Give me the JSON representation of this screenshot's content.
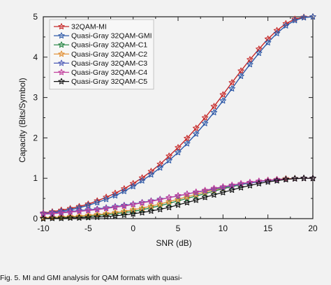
{
  "chart_data": {
    "type": "line",
    "xlabel": "SNR (dB)",
    "ylabel": "Capacity (Bits/Symbol)",
    "xlim": [
      -10,
      20
    ],
    "ylim": [
      0,
      5
    ],
    "x_ticks": [
      -10,
      -5,
      0,
      5,
      10,
      15,
      20
    ],
    "y_ticks": [
      0,
      1,
      2,
      3,
      4,
      5
    ],
    "grid": false,
    "legend_position": "top-left",
    "x": [
      -10,
      -9,
      -8,
      -7,
      -6,
      -5,
      -4,
      -3,
      -2,
      -1,
      0,
      1,
      2,
      3,
      4,
      5,
      6,
      7,
      8,
      9,
      10,
      11,
      12,
      13,
      14,
      15,
      16,
      17,
      18,
      19,
      20
    ],
    "series": [
      {
        "name": "32QAM-MI",
        "color": "#c62828",
        "marker": "star",
        "values": [
          0.14,
          0.17,
          0.21,
          0.25,
          0.3,
          0.36,
          0.44,
          0.53,
          0.63,
          0.74,
          0.87,
          1.01,
          1.17,
          1.35,
          1.55,
          1.76,
          1.99,
          2.24,
          2.5,
          2.78,
          3.07,
          3.37,
          3.66,
          3.94,
          4.2,
          4.45,
          4.66,
          4.83,
          4.94,
          4.99,
          5.0
        ]
      },
      {
        "name": "Quasi-Gray 32QAM-GMI",
        "color": "#2f5aa8",
        "marker": "star",
        "values": [
          0.12,
          0.15,
          0.18,
          0.22,
          0.27,
          0.33,
          0.4,
          0.48,
          0.57,
          0.68,
          0.8,
          0.94,
          1.09,
          1.26,
          1.44,
          1.64,
          1.86,
          2.1,
          2.36,
          2.63,
          2.92,
          3.22,
          3.53,
          3.82,
          4.1,
          4.36,
          4.59,
          4.78,
          4.91,
          4.98,
          5.0
        ]
      },
      {
        "name": "Quasi-Gray 32QAM-C1",
        "color": "#1b7f3a",
        "marker": "star",
        "values": [
          0.01,
          0.02,
          0.03,
          0.04,
          0.05,
          0.06,
          0.08,
          0.1,
          0.12,
          0.15,
          0.18,
          0.22,
          0.27,
          0.32,
          0.38,
          0.44,
          0.5,
          0.56,
          0.62,
          0.68,
          0.74,
          0.79,
          0.84,
          0.88,
          0.92,
          0.95,
          0.97,
          0.99,
          0.995,
          1.0,
          1.0
        ]
      },
      {
        "name": "Quasi-Gray 32QAM-C2",
        "color": "#e08a2a",
        "marker": "star",
        "values": [
          0.02,
          0.03,
          0.04,
          0.05,
          0.06,
          0.08,
          0.1,
          0.12,
          0.15,
          0.18,
          0.22,
          0.26,
          0.31,
          0.36,
          0.42,
          0.48,
          0.54,
          0.6,
          0.66,
          0.71,
          0.76,
          0.81,
          0.85,
          0.89,
          0.92,
          0.95,
          0.97,
          0.99,
          0.995,
          1.0,
          1.0
        ]
      },
      {
        "name": "Quasi-Gray 32QAM-C3",
        "color": "#4d5ab6",
        "marker": "star",
        "values": [
          0.13,
          0.14,
          0.16,
          0.18,
          0.2,
          0.22,
          0.24,
          0.27,
          0.3,
          0.33,
          0.36,
          0.4,
          0.44,
          0.48,
          0.52,
          0.56,
          0.61,
          0.65,
          0.69,
          0.73,
          0.77,
          0.81,
          0.85,
          0.88,
          0.91,
          0.94,
          0.96,
          0.98,
          0.99,
          1.0,
          1.0
        ]
      },
      {
        "name": "Quasi-Gray 32QAM-C4",
        "color": "#c13c9b",
        "marker": "star",
        "values": [
          0.11,
          0.12,
          0.14,
          0.16,
          0.18,
          0.2,
          0.22,
          0.25,
          0.28,
          0.31,
          0.35,
          0.39,
          0.43,
          0.47,
          0.52,
          0.57,
          0.61,
          0.66,
          0.7,
          0.75,
          0.79,
          0.83,
          0.87,
          0.9,
          0.93,
          0.95,
          0.97,
          0.98,
          0.99,
          1.0,
          1.0
        ]
      },
      {
        "name": "Quasi-Gray 32QAM-C5",
        "color": "#111111",
        "marker": "star",
        "values": [
          0.0,
          0.01,
          0.01,
          0.02,
          0.02,
          0.03,
          0.04,
          0.05,
          0.07,
          0.09,
          0.12,
          0.15,
          0.19,
          0.23,
          0.28,
          0.34,
          0.4,
          0.46,
          0.53,
          0.59,
          0.65,
          0.71,
          0.77,
          0.82,
          0.87,
          0.91,
          0.94,
          0.97,
          0.99,
          1.0,
          1.0
        ]
      }
    ]
  },
  "caption": "Fig. 5. MI and GMI analysis for QAM formats with quasi-"
}
